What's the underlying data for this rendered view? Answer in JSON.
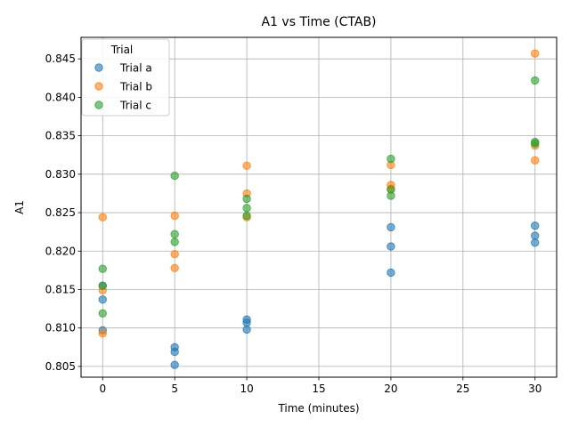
{
  "chart_data": {
    "type": "scatter",
    "title": "A1 vs Time (CTAB)",
    "xlabel": "Time (minutes)",
    "ylabel": "A1",
    "xlim": [
      -1.5,
      31.5
    ],
    "ylim": [
      0.8036,
      0.8478
    ],
    "x_ticks": [
      0,
      5,
      10,
      15,
      20,
      25,
      30
    ],
    "y_ticks": [
      0.805,
      0.81,
      0.815,
      0.82,
      0.825,
      0.83,
      0.835,
      0.84,
      0.845
    ],
    "grid": true,
    "legend": {
      "title": "Trial",
      "placement": "top-left"
    },
    "series": [
      {
        "name": "Trial a",
        "color": "#1f77b4",
        "points": [
          [
            0,
            0.8155
          ],
          [
            0,
            0.8137
          ],
          [
            0,
            0.8097
          ],
          [
            5,
            0.8075
          ],
          [
            5,
            0.8069
          ],
          [
            5,
            0.8052
          ],
          [
            10,
            0.8111
          ],
          [
            10,
            0.8107
          ],
          [
            10,
            0.8098
          ],
          [
            20,
            0.8231
          ],
          [
            20,
            0.8206
          ],
          [
            20,
            0.8172
          ],
          [
            30,
            0.8233
          ],
          [
            30,
            0.822
          ],
          [
            30,
            0.8211
          ]
        ]
      },
      {
        "name": "Trial b",
        "color": "#ff7f0e",
        "points": [
          [
            0,
            0.8244
          ],
          [
            0,
            0.8149
          ],
          [
            0,
            0.8093
          ],
          [
            5,
            0.8246
          ],
          [
            5,
            0.8196
          ],
          [
            5,
            0.8178
          ],
          [
            10,
            0.8311
          ],
          [
            10,
            0.8275
          ],
          [
            10,
            0.8244
          ],
          [
            20,
            0.8312
          ],
          [
            20,
            0.8286
          ],
          [
            20,
            0.8281
          ],
          [
            30,
            0.8457
          ],
          [
            30,
            0.8337
          ],
          [
            30,
            0.8318
          ]
        ]
      },
      {
        "name": "Trial c",
        "color": "#2ca02c",
        "points": [
          [
            0,
            0.8177
          ],
          [
            0,
            0.8155
          ],
          [
            0,
            0.8119
          ],
          [
            5,
            0.8298
          ],
          [
            5,
            0.8222
          ],
          [
            5,
            0.8212
          ],
          [
            10,
            0.8268
          ],
          [
            10,
            0.8256
          ],
          [
            10,
            0.8246
          ],
          [
            20,
            0.832
          ],
          [
            20,
            0.828
          ],
          [
            20,
            0.8272
          ],
          [
            30,
            0.8422
          ],
          [
            30,
            0.8342
          ],
          [
            30,
            0.834
          ]
        ]
      }
    ]
  }
}
